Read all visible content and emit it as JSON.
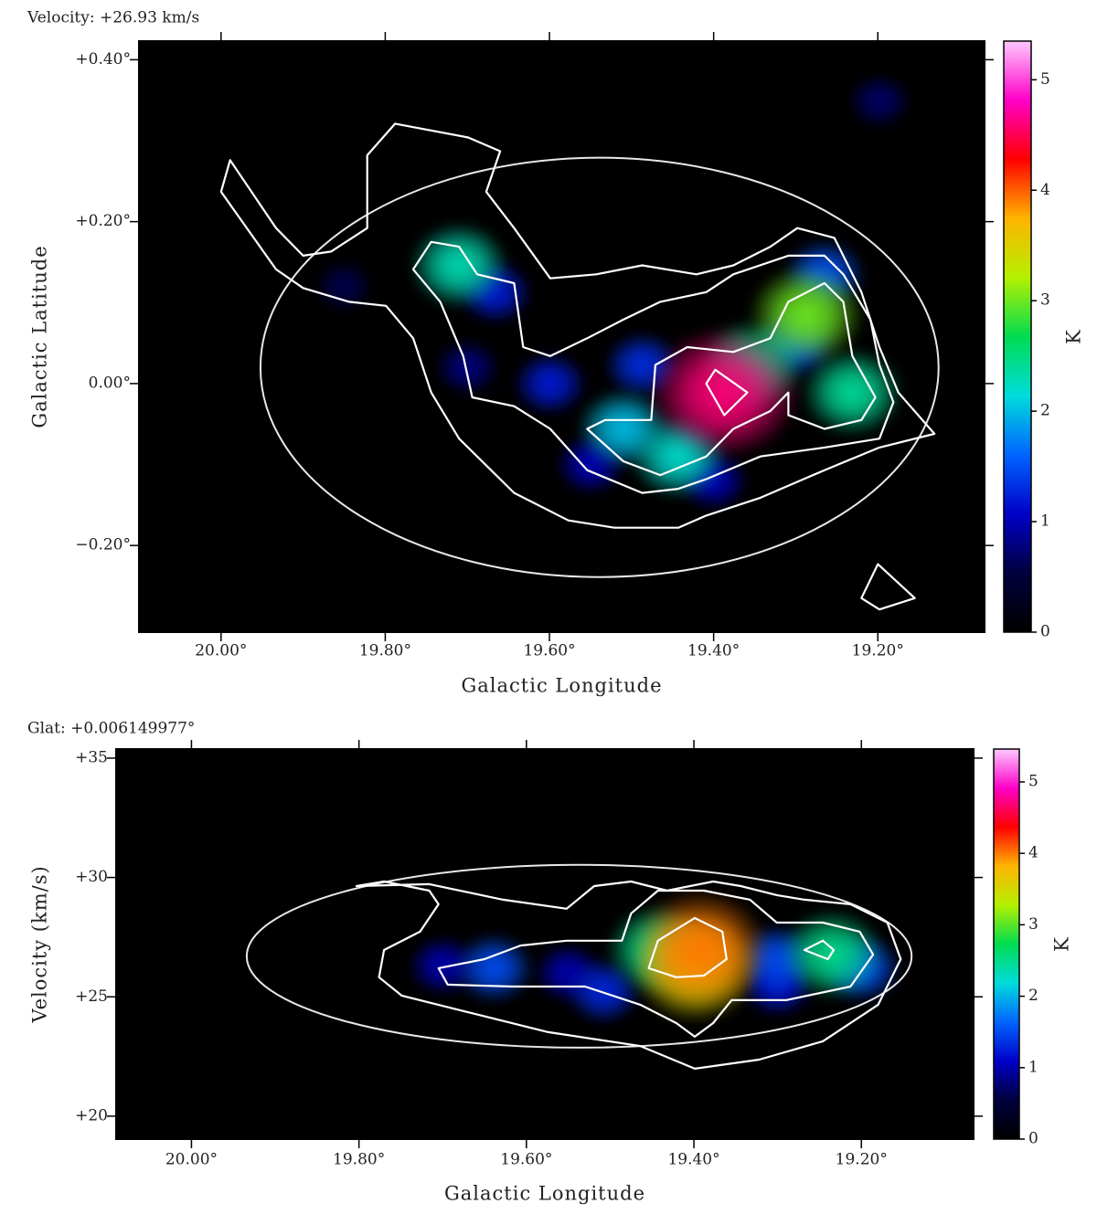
{
  "chart_data": [
    {
      "type": "heatmap",
      "title": "Velocity: +26.93 km/s",
      "xlabel": "Galactic Longitude",
      "ylabel": "Galactic Latitude",
      "colorbar_label": "K",
      "xlim": [
        20.1,
        19.07
      ],
      "ylim": [
        -0.307,
        0.423
      ],
      "xticks": [
        {
          "value": 20.0,
          "label": "20.00°"
        },
        {
          "value": 19.8,
          "label": "19.80°"
        },
        {
          "value": 19.6,
          "label": "19.60°"
        },
        {
          "value": 19.4,
          "label": "19.40°"
        },
        {
          "value": 19.2,
          "label": "19.20°"
        }
      ],
      "yticks": [
        {
          "value": 0.4,
          "label": "+0.40°"
        },
        {
          "value": 0.2,
          "label": "+0.20°"
        },
        {
          "value": 0,
          "label": "0.00°"
        },
        {
          "value": -0.2,
          "label": "−0.20°"
        }
      ],
      "clim": [
        0,
        5.35
      ],
      "cticks": [
        0,
        1,
        2,
        3,
        4,
        5
      ],
      "colormap": [
        "#000000",
        "#00003c",
        "#0000c8",
        "#0064ff",
        "#00dcdc",
        "#00dc50",
        "#b4f000",
        "#ffb400",
        "#ff0000",
        "#ff00c8",
        "#ffc8ff"
      ],
      "contour_color": "#ffffff",
      "ellipse_color": "#e8e8e8",
      "blobs": [
        {
          "x": 19.85,
          "y": 0.12,
          "value": 0.6
        },
        {
          "x": 19.198,
          "y": 0.349,
          "value": 0.7
        },
        {
          "x": 19.7,
          "y": 0.02,
          "value": 0.8
        },
        {
          "x": 19.55,
          "y": -0.1,
          "value": 1.0
        },
        {
          "x": 19.4,
          "y": -0.12,
          "value": 1.0
        },
        {
          "x": 19.599,
          "y": 0.0,
          "value": 1.2
        },
        {
          "x": 19.666,
          "y": 0.113,
          "value": 1.2
        },
        {
          "x": 19.487,
          "y": 0.023,
          "value": 1.3
        },
        {
          "x": 19.3,
          "y": 0.05,
          "value": 1.5
        },
        {
          "x": 19.265,
          "y": 0.135,
          "value": 1.5
        },
        {
          "x": 19.51,
          "y": -0.056,
          "value": 2.0
        },
        {
          "x": 19.443,
          "y": -0.09,
          "value": 2.2
        },
        {
          "x": 19.71,
          "y": 0.146,
          "value": 2.3
        },
        {
          "x": 19.231,
          "y": -0.011,
          "value": 2.4
        },
        {
          "x": 19.353,
          "y": 0.023,
          "value": 2.5
        },
        {
          "x": 19.287,
          "y": 0.085,
          "value": 3.0
        },
        {
          "x": 19.387,
          "y": -0.011,
          "value": 4.6
        }
      ],
      "contours": [
        {
          "x": [
            19.989,
            20.0,
            19.933,
            19.9,
            19.844,
            19.799,
            19.766,
            19.744,
            19.71,
            19.643,
            19.577,
            19.521,
            19.443,
            19.409,
            19.343,
            19.265,
            19.198,
            19.131,
            19.175,
            19.198,
            19.22,
            19.253,
            19.298,
            19.331,
            19.376,
            19.421,
            19.487,
            19.543,
            19.599,
            19.643,
            19.677,
            19.66,
            19.699,
            19.788,
            19.822,
            19.822,
            19.866,
            19.9,
            19.933
          ],
          "y": [
            0.276,
            0.237,
            0.141,
            0.118,
            0.101,
            0.096,
            0.056,
            -0.011,
            -0.068,
            -0.135,
            -0.169,
            -0.178,
            -0.178,
            -0.163,
            -0.141,
            -0.107,
            -0.079,
            -0.062,
            -0.011,
            0.045,
            0.113,
            0.18,
            0.192,
            0.169,
            0.146,
            0.135,
            0.146,
            0.135,
            0.13,
            0.192,
            0.237,
            0.287,
            0.304,
            0.321,
            0.282,
            0.192,
            0.163,
            0.158,
            0.192
          ]
        },
        {
          "x": [
            19.766,
            19.744,
            19.71,
            19.688,
            19.643,
            19.632,
            19.599,
            19.554,
            19.51,
            19.465,
            19.409,
            19.376,
            19.309,
            19.265,
            19.242,
            19.209,
            19.198,
            19.181,
            19.198,
            19.265,
            19.343,
            19.409,
            19.443,
            19.487,
            19.554,
            19.599,
            19.643,
            19.694,
            19.705,
            19.733
          ],
          "y": [
            0.141,
            0.175,
            0.169,
            0.135,
            0.124,
            0.045,
            0.034,
            0.056,
            0.079,
            0.101,
            0.113,
            0.135,
            0.158,
            0.158,
            0.135,
            0.079,
            0.023,
            -0.023,
            -0.068,
            -0.079,
            -0.09,
            -0.118,
            -0.13,
            -0.135,
            -0.107,
            -0.056,
            -0.028,
            -0.017,
            0.034,
            0.101
          ]
        },
        {
          "x": [
            19.554,
            19.532,
            19.476,
            19.471,
            19.432,
            19.376,
            19.331,
            19.309,
            19.265,
            19.242,
            19.231,
            19.203,
            19.22,
            19.265,
            19.309,
            19.309,
            19.331,
            19.376,
            19.409,
            19.465,
            19.51
          ],
          "y": [
            -0.056,
            -0.045,
            -0.045,
            0.023,
            0.045,
            0.039,
            0.056,
            0.101,
            0.124,
            0.101,
            0.034,
            -0.017,
            -0.045,
            -0.056,
            -0.039,
            -0.011,
            -0.034,
            -0.056,
            -0.09,
            -0.113,
            -0.096
          ]
        },
        {
          "x": [
            19.409,
            19.398,
            19.359,
            19.387
          ],
          "y": [
            0.0,
            0.017,
            -0.011,
            -0.039
          ]
        },
        {
          "x": [
            19.22,
            19.2,
            19.155,
            19.198
          ],
          "y": [
            -0.265,
            -0.223,
            -0.265,
            -0.279
          ]
        }
      ],
      "ellipse": {
        "center": [
          19.539,
          0.02
        ],
        "semi_axes": [
          0.413,
          0.259
        ]
      }
    },
    {
      "type": "heatmap",
      "title": "Glat: +0.006149977°",
      "xlabel": "Galactic Longitude",
      "ylabel": "Velocity (km/s)",
      "colorbar_label": "K",
      "xlim": [
        20.09,
        19.066
      ],
      "ylim": [
        19.04,
        35.38
      ],
      "xticks": [
        {
          "value": 20.0,
          "label": "20.00°"
        },
        {
          "value": 19.8,
          "label": "19.80°"
        },
        {
          "value": 19.6,
          "label": "19.60°"
        },
        {
          "value": 19.4,
          "label": "19.40°"
        },
        {
          "value": 19.2,
          "label": "19.20°"
        }
      ],
      "yticks": [
        {
          "value": 35,
          "label": "+35"
        },
        {
          "value": 30,
          "label": "+30"
        },
        {
          "value": 25,
          "label": "+25"
        },
        {
          "value": 20,
          "label": "+20"
        }
      ],
      "clim": [
        0,
        5.46
      ],
      "cticks": [
        0,
        1,
        2,
        3,
        4,
        5
      ],
      "colormap": [
        "#000000",
        "#00003c",
        "#0000c8",
        "#0064ff",
        "#00dcdc",
        "#00dc50",
        "#b4f000",
        "#ffb400",
        "#ff0000",
        "#ff00c8",
        "#ffc8ff"
      ],
      "contour_color": "#ffffff",
      "ellipse_color": "#e8e8e8",
      "blobs": [
        {
          "x": 19.7,
          "y": 26.3,
          "value": 1.0
        },
        {
          "x": 19.55,
          "y": 26.0,
          "value": 1.0
        },
        {
          "x": 19.3,
          "y": 25.5,
          "value": 1.2
        },
        {
          "x": 19.508,
          "y": 25.24,
          "value": 1.3
        },
        {
          "x": 19.639,
          "y": 26.2,
          "value": 1.5
        },
        {
          "x": 19.301,
          "y": 26.58,
          "value": 1.5
        },
        {
          "x": 19.2,
          "y": 26.2,
          "value": 1.5
        },
        {
          "x": 19.235,
          "y": 26.77,
          "value": 2.5
        },
        {
          "x": 19.443,
          "y": 26.96,
          "value": 2.5
        },
        {
          "x": 19.399,
          "y": 26.2,
          "value": 3.5
        },
        {
          "x": 19.393,
          "y": 26.96,
          "value": 4.0
        }
      ],
      "contours": [
        {
          "x": [
            19.803,
            19.77,
            19.716,
            19.705,
            19.727,
            19.77,
            19.776,
            19.749,
            19.661,
            19.574,
            19.464,
            19.399,
            19.322,
            19.246,
            19.18,
            19.153,
            19.169,
            19.213,
            19.268,
            19.301,
            19.344,
            19.377,
            19.432,
            19.475,
            19.519,
            19.552,
            19.628,
            19.716
          ],
          "y": [
            29.64,
            29.83,
            29.45,
            28.88,
            27.73,
            26.96,
            25.82,
            25.05,
            24.28,
            23.52,
            22.94,
            21.99,
            22.37,
            23.14,
            24.67,
            26.58,
            28.11,
            28.88,
            29.07,
            29.26,
            29.64,
            29.83,
            29.45,
            29.83,
            29.64,
            28.69,
            29.07,
            29.72
          ]
        },
        {
          "x": [
            19.705,
            19.65,
            19.607,
            19.552,
            19.486,
            19.475,
            19.443,
            19.388,
            19.333,
            19.301,
            19.246,
            19.202,
            19.186,
            19.213,
            19.29,
            19.355,
            19.377,
            19.399,
            19.421,
            19.464,
            19.53,
            19.617,
            19.694
          ],
          "y": [
            26.2,
            26.58,
            27.15,
            27.35,
            27.35,
            28.49,
            29.45,
            29.45,
            29.07,
            28.11,
            28.11,
            27.73,
            26.77,
            25.43,
            24.86,
            24.86,
            23.9,
            23.33,
            23.9,
            24.67,
            25.43,
            25.43,
            25.51
          ]
        },
        {
          "x": [
            19.454,
            19.443,
            19.399,
            19.366,
            19.361,
            19.388,
            19.421
          ],
          "y": [
            26.2,
            27.35,
            28.3,
            27.73,
            26.58,
            25.89,
            25.82
          ]
        },
        {
          "x": [
            19.268,
            19.246,
            19.233,
            19.24
          ],
          "y": [
            26.96,
            27.35,
            26.96,
            26.58
          ]
        }
      ],
      "ellipse": {
        "center": [
          19.537,
          26.7
        ],
        "semi_axes": [
          0.397,
          3.83
        ]
      }
    }
  ]
}
